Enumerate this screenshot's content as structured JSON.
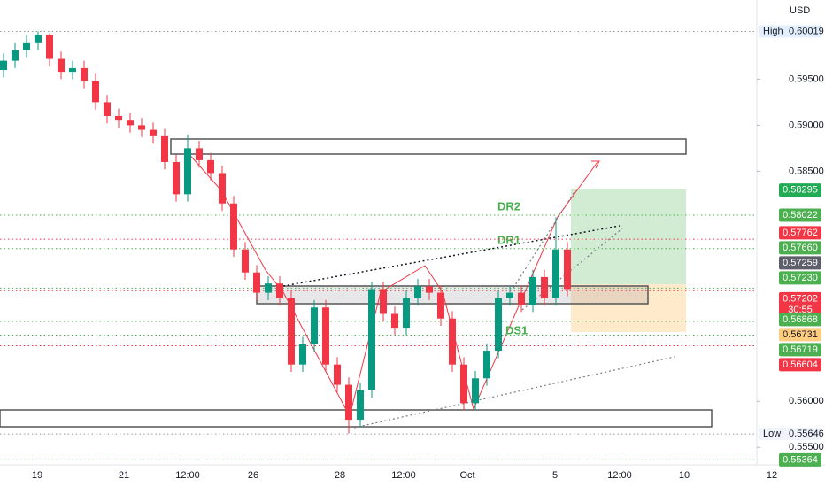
{
  "chart_data": {
    "type": "candlestick",
    "currency": "USD",
    "ylim": [
      0.5531,
      0.6036
    ],
    "yticks": [
      {
        "value": 0.595,
        "label": "0.59500"
      },
      {
        "value": 0.59,
        "label": "0.59000"
      },
      {
        "value": 0.585,
        "label": "0.58500"
      },
      {
        "value": 0.56,
        "label": "0.56000"
      },
      {
        "value": 0.555,
        "label": "0.55500"
      }
    ],
    "x_labels": [
      "19",
      "21",
      "12:00",
      "26",
      "28",
      "12:00",
      "Oct",
      "5",
      "12:00",
      "10",
      "12"
    ],
    "open": [
      0.596,
      0.597,
      0.5982,
      0.599,
      0.5998,
      0.5972,
      0.5958,
      0.5962,
      0.5948,
      0.5925,
      0.591,
      0.5905,
      0.59,
      0.5895,
      0.5888,
      0.586,
      0.5825,
      0.5875,
      0.5862,
      0.5848,
      0.5815,
      0.5765,
      0.574,
      0.5718,
      0.5728,
      0.5712,
      0.564,
      0.5662,
      0.5702,
      0.564,
      0.5618,
      0.558,
      0.5612,
      0.5722,
      0.5695,
      0.568,
      0.5712,
      0.5725,
      0.5718,
      0.569,
      0.564,
      0.5598,
      0.5625,
      0.5655,
      0.5712,
      0.5718,
      0.5705,
      0.5735,
      0.5712,
      0.5765
    ],
    "high": [
      0.5978,
      0.599,
      0.5998,
      0.6002,
      0.6,
      0.598,
      0.597,
      0.597,
      0.5956,
      0.5933,
      0.5918,
      0.5913,
      0.5908,
      0.5903,
      0.5896,
      0.5868,
      0.589,
      0.5883,
      0.587,
      0.5856,
      0.5823,
      0.5773,
      0.5748,
      0.5736,
      0.5736,
      0.572,
      0.567,
      0.571,
      0.571,
      0.5648,
      0.5626,
      0.562,
      0.573,
      0.573,
      0.5703,
      0.572,
      0.5733,
      0.5733,
      0.5726,
      0.5698,
      0.5648,
      0.5633,
      0.5663,
      0.572,
      0.5726,
      0.5726,
      0.5743,
      0.5743,
      0.58,
      0.5773
    ],
    "low": [
      0.5952,
      0.5962,
      0.5974,
      0.5982,
      0.5964,
      0.595,
      0.595,
      0.594,
      0.5917,
      0.5902,
      0.5897,
      0.5892,
      0.5887,
      0.588,
      0.5852,
      0.5817,
      0.5817,
      0.5854,
      0.584,
      0.5807,
      0.5757,
      0.5732,
      0.571,
      0.571,
      0.5704,
      0.5632,
      0.5632,
      0.5654,
      0.5632,
      0.561,
      0.5565,
      0.5572,
      0.5604,
      0.5687,
      0.5672,
      0.5672,
      0.5704,
      0.571,
      0.5682,
      0.5632,
      0.559,
      0.559,
      0.5617,
      0.5647,
      0.5704,
      0.5697,
      0.5697,
      0.5704,
      0.5704,
      0.5714
    ],
    "close": [
      0.597,
      0.5982,
      0.599,
      0.5998,
      0.5972,
      0.5958,
      0.5962,
      0.5948,
      0.5925,
      0.591,
      0.5905,
      0.59,
      0.5895,
      0.5888,
      0.586,
      0.5825,
      0.5875,
      0.5862,
      0.5848,
      0.5815,
      0.5765,
      0.574,
      0.5718,
      0.5728,
      0.5712,
      0.564,
      0.5662,
      0.5702,
      0.564,
      0.5618,
      0.558,
      0.5612,
      0.5722,
      0.5695,
      0.568,
      0.5712,
      0.5725,
      0.5718,
      0.569,
      0.564,
      0.5598,
      0.5625,
      0.5655,
      0.5712,
      0.5718,
      0.5705,
      0.5735,
      0.5712,
      0.5765,
      0.5722
    ],
    "up_color": "#089981",
    "down_color": "#f23645",
    "high_marker": {
      "name": "High",
      "value": 0.60019,
      "label": "0.60019"
    },
    "low_marker": {
      "name": "Low",
      "value": 0.55646,
      "label": "0.55646"
    },
    "levels": [
      {
        "value": 0.58295,
        "label": "0.58295",
        "color": "#22ab54",
        "text_color": "#ffffff",
        "dotted": false
      },
      {
        "value": 0.58022,
        "label": "0.58022",
        "color": "#4caf50",
        "text_color": "#ffffff",
        "dotted": true
      },
      {
        "value": 0.57762,
        "label": "0.57762",
        "color": "#f23645",
        "text_color": "#ffffff",
        "dotted": true
      },
      {
        "value": 0.5766,
        "label": "0.57660",
        "color": "#4caf50",
        "text_color": "#ffffff",
        "dotted": true
      },
      {
        "value": 0.57259,
        "label": "0.57259",
        "color": "#5d606b",
        "text_color": "#ffffff",
        "dotted": false
      },
      {
        "value": 0.5723,
        "label": "0.57230",
        "color": "#4caf50",
        "text_color": "#ffffff",
        "dotted": true
      },
      {
        "value": 0.57202,
        "label": "0.57202",
        "color": "#f23645",
        "text_color": "#ffffff",
        "dotted": true,
        "countdown": "30:55"
      },
      {
        "value": 0.56868,
        "label": "0.56868",
        "color": "#4caf50",
        "text_color": "#ffffff",
        "dotted": true
      },
      {
        "value": 0.56731,
        "label": "0.56731",
        "color": "#ffcc80",
        "text_color": "#131722",
        "dotted": false
      },
      {
        "value": 0.56719,
        "label": "0.56719",
        "color": "#4caf50",
        "text_color": "#ffffff",
        "dotted": true
      },
      {
        "value": 0.56604,
        "label": "0.56604",
        "color": "#f23645",
        "text_color": "#ffffff",
        "dotted": true
      },
      {
        "value": 0.55364,
        "label": "0.55364",
        "color": "#4caf50",
        "text_color": "#ffffff",
        "dotted": true
      }
    ],
    "annotations": [
      "DR2",
      "DR1",
      "DS1"
    ]
  }
}
